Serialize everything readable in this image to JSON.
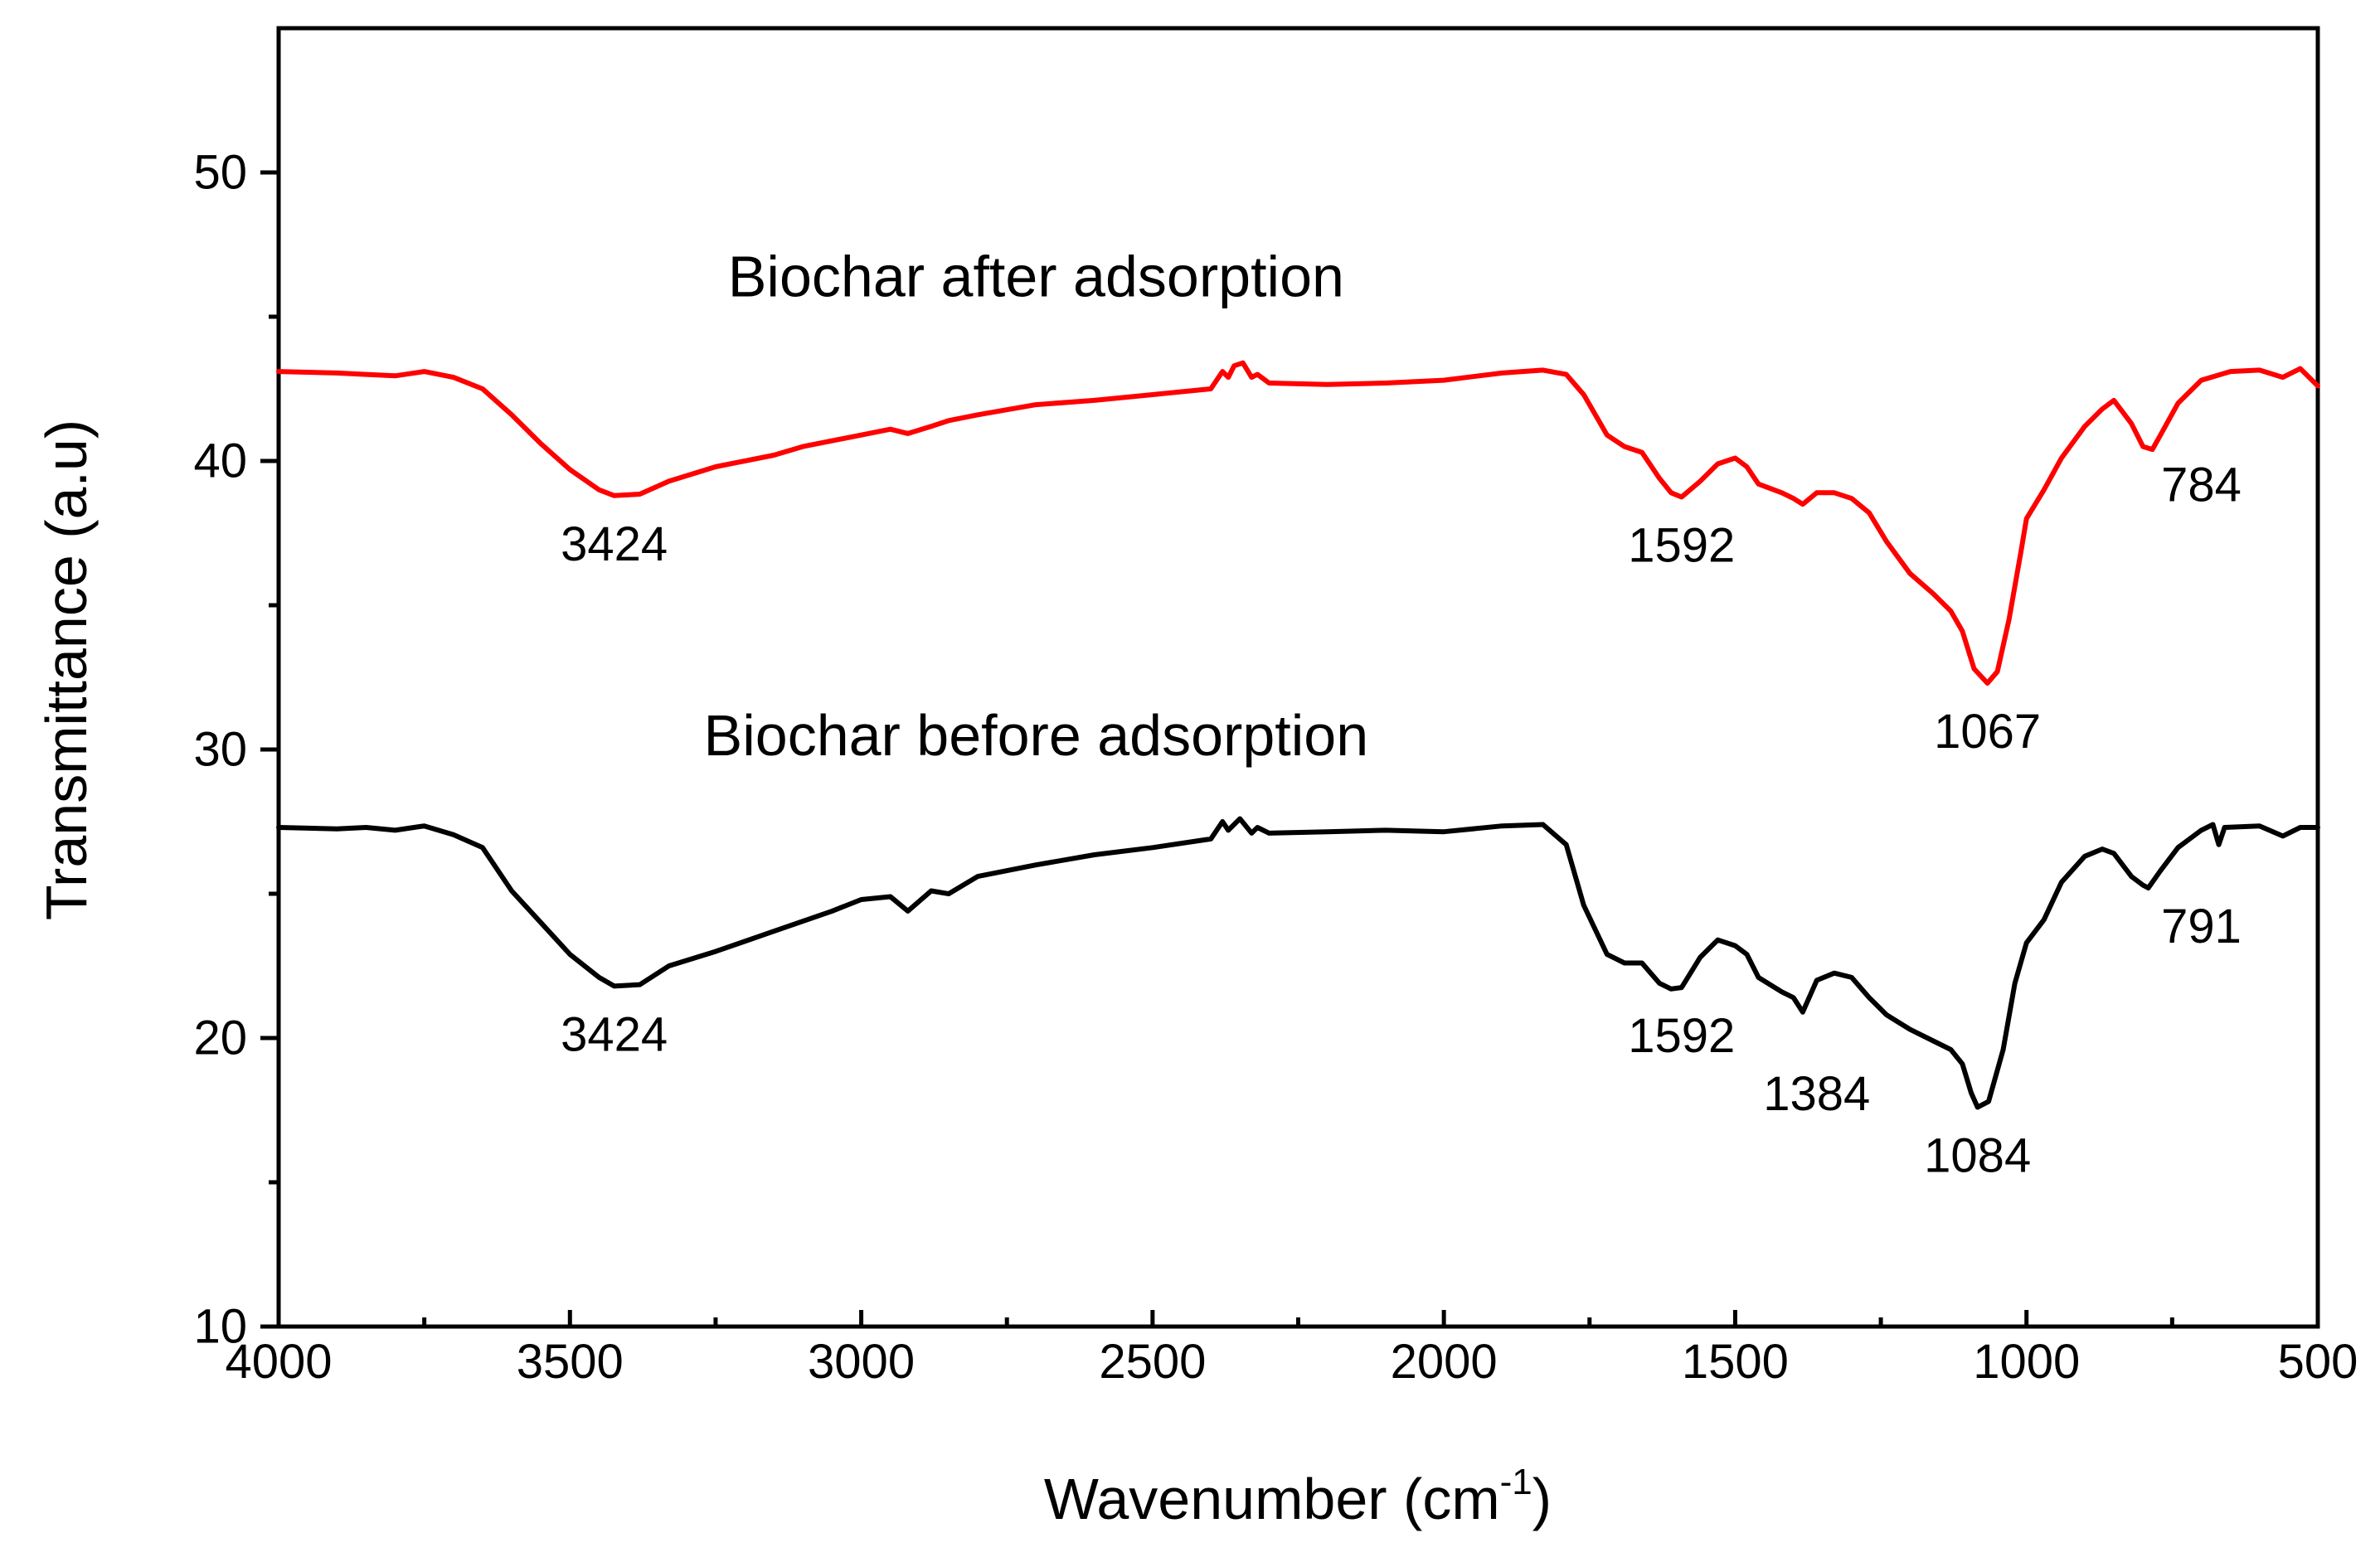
{
  "chart_data": {
    "type": "line",
    "title": "",
    "xlabel": "Wavenumber (cm",
    "xlabel_sup": "-1",
    "xlabel_close": ")",
    "ylabel": "Transmittance (a.u)",
    "xlim": [
      4000,
      500
    ],
    "ylim": [
      10,
      55
    ],
    "x_ticks": [
      4000,
      3500,
      3000,
      2500,
      2000,
      1500,
      1000,
      500
    ],
    "x_minor_ticks": [
      3750,
      3250,
      2750,
      2250,
      1750,
      1250,
      750
    ],
    "y_ticks": [
      10,
      20,
      30,
      40,
      50
    ],
    "y_minor_ticks": [
      15,
      25,
      35,
      45
    ],
    "grid": false,
    "series": [
      {
        "name": "Biochar after adsorption",
        "color": "#ff0000",
        "label": "Biochar after adsorption",
        "label_anchor": [
          2700,
          45.7
        ],
        "points": [
          [
            4000,
            43.1
          ],
          [
            3900,
            43.05
          ],
          [
            3850,
            43.0
          ],
          [
            3800,
            42.95
          ],
          [
            3750,
            43.1
          ],
          [
            3700,
            42.9
          ],
          [
            3650,
            42.5
          ],
          [
            3600,
            41.6
          ],
          [
            3550,
            40.6
          ],
          [
            3500,
            39.7
          ],
          [
            3450,
            39.0
          ],
          [
            3424,
            38.8
          ],
          [
            3380,
            38.85
          ],
          [
            3330,
            39.3
          ],
          [
            3250,
            39.8
          ],
          [
            3150,
            40.2
          ],
          [
            3100,
            40.5
          ],
          [
            3000,
            40.9
          ],
          [
            2950,
            41.1
          ],
          [
            2920,
            40.95
          ],
          [
            2880,
            41.2
          ],
          [
            2850,
            41.4
          ],
          [
            2800,
            41.6
          ],
          [
            2700,
            41.95
          ],
          [
            2600,
            42.1
          ],
          [
            2500,
            42.3
          ],
          [
            2400,
            42.5
          ],
          [
            2380,
            43.1
          ],
          [
            2370,
            42.9
          ],
          [
            2360,
            43.3
          ],
          [
            2345,
            43.4
          ],
          [
            2330,
            42.9
          ],
          [
            2320,
            43.0
          ],
          [
            2300,
            42.7
          ],
          [
            2200,
            42.65
          ],
          [
            2100,
            42.7
          ],
          [
            2000,
            42.8
          ],
          [
            1900,
            43.05
          ],
          [
            1830,
            43.15
          ],
          [
            1790,
            43.0
          ],
          [
            1760,
            42.3
          ],
          [
            1720,
            40.9
          ],
          [
            1690,
            40.5
          ],
          [
            1660,
            40.3
          ],
          [
            1630,
            39.4
          ],
          [
            1610,
            38.9
          ],
          [
            1592,
            38.75
          ],
          [
            1560,
            39.3
          ],
          [
            1530,
            39.9
          ],
          [
            1500,
            40.1
          ],
          [
            1480,
            39.8
          ],
          [
            1460,
            39.2
          ],
          [
            1420,
            38.9
          ],
          [
            1400,
            38.7
          ],
          [
            1384,
            38.5
          ],
          [
            1360,
            38.9
          ],
          [
            1330,
            38.9
          ],
          [
            1300,
            38.7
          ],
          [
            1270,
            38.2
          ],
          [
            1240,
            37.2
          ],
          [
            1200,
            36.1
          ],
          [
            1160,
            35.4
          ],
          [
            1130,
            34.8
          ],
          [
            1110,
            34.1
          ],
          [
            1090,
            32.8
          ],
          [
            1067,
            32.3
          ],
          [
            1050,
            32.7
          ],
          [
            1030,
            34.5
          ],
          [
            1010,
            36.8
          ],
          [
            1000,
            38.0
          ],
          [
            970,
            39.0
          ],
          [
            940,
            40.1
          ],
          [
            900,
            41.2
          ],
          [
            870,
            41.8
          ],
          [
            850,
            42.1
          ],
          [
            820,
            41.3
          ],
          [
            800,
            40.5
          ],
          [
            784,
            40.4
          ],
          [
            770,
            40.9
          ],
          [
            740,
            42.0
          ],
          [
            700,
            42.8
          ],
          [
            650,
            43.1
          ],
          [
            600,
            43.15
          ],
          [
            560,
            42.9
          ],
          [
            530,
            43.2
          ],
          [
            500,
            42.6
          ]
        ],
        "peaks": [
          {
            "label": "3424",
            "x": 3424,
            "y": 38.8
          },
          {
            "label": "1592",
            "x": 1592,
            "y": 38.75
          },
          {
            "label": "1067",
            "x": 1067,
            "y": 32.3
          },
          {
            "label": "784",
            "x": 784,
            "y": 40.4
          }
        ]
      },
      {
        "name": "Biochar before adsorption",
        "color": "#000000",
        "label": "Biochar before adsorption",
        "label_anchor": [
          2700,
          29.8
        ],
        "points": [
          [
            4000,
            27.3
          ],
          [
            3900,
            27.25
          ],
          [
            3850,
            27.3
          ],
          [
            3800,
            27.2
          ],
          [
            3750,
            27.35
          ],
          [
            3700,
            27.05
          ],
          [
            3650,
            26.6
          ],
          [
            3600,
            25.1
          ],
          [
            3550,
            24.0
          ],
          [
            3500,
            22.9
          ],
          [
            3450,
            22.1
          ],
          [
            3424,
            21.8
          ],
          [
            3380,
            21.85
          ],
          [
            3330,
            22.5
          ],
          [
            3250,
            23.0
          ],
          [
            3150,
            23.7
          ],
          [
            3050,
            24.4
          ],
          [
            3000,
            24.8
          ],
          [
            2950,
            24.9
          ],
          [
            2920,
            24.4
          ],
          [
            2880,
            25.1
          ],
          [
            2850,
            25.0
          ],
          [
            2800,
            25.6
          ],
          [
            2700,
            26.0
          ],
          [
            2600,
            26.35
          ],
          [
            2500,
            26.6
          ],
          [
            2400,
            26.9
          ],
          [
            2380,
            27.5
          ],
          [
            2370,
            27.2
          ],
          [
            2350,
            27.6
          ],
          [
            2330,
            27.1
          ],
          [
            2320,
            27.3
          ],
          [
            2300,
            27.1
          ],
          [
            2200,
            27.15
          ],
          [
            2100,
            27.2
          ],
          [
            2000,
            27.15
          ],
          [
            1900,
            27.35
          ],
          [
            1830,
            27.4
          ],
          [
            1790,
            26.7
          ],
          [
            1760,
            24.6
          ],
          [
            1720,
            22.9
          ],
          [
            1690,
            22.6
          ],
          [
            1660,
            22.6
          ],
          [
            1630,
            21.9
          ],
          [
            1610,
            21.7
          ],
          [
            1592,
            21.75
          ],
          [
            1560,
            22.8
          ],
          [
            1530,
            23.4
          ],
          [
            1500,
            23.2
          ],
          [
            1480,
            22.9
          ],
          [
            1460,
            22.1
          ],
          [
            1420,
            21.6
          ],
          [
            1400,
            21.4
          ],
          [
            1384,
            20.9
          ],
          [
            1360,
            22.0
          ],
          [
            1330,
            22.25
          ],
          [
            1300,
            22.1
          ],
          [
            1270,
            21.4
          ],
          [
            1240,
            20.8
          ],
          [
            1200,
            20.3
          ],
          [
            1160,
            19.9
          ],
          [
            1130,
            19.6
          ],
          [
            1110,
            19.1
          ],
          [
            1095,
            18.1
          ],
          [
            1084,
            17.6
          ],
          [
            1065,
            17.8
          ],
          [
            1040,
            19.6
          ],
          [
            1020,
            21.9
          ],
          [
            1000,
            23.3
          ],
          [
            970,
            24.1
          ],
          [
            940,
            25.4
          ],
          [
            900,
            26.3
          ],
          [
            870,
            26.55
          ],
          [
            850,
            26.4
          ],
          [
            820,
            25.6
          ],
          [
            800,
            25.3
          ],
          [
            791,
            25.2
          ],
          [
            770,
            25.8
          ],
          [
            740,
            26.6
          ],
          [
            700,
            27.2
          ],
          [
            680,
            27.4
          ],
          [
            670,
            26.7
          ],
          [
            660,
            27.3
          ],
          [
            600,
            27.35
          ],
          [
            560,
            27.0
          ],
          [
            530,
            27.3
          ],
          [
            500,
            27.3
          ]
        ],
        "peaks": [
          {
            "label": "3424",
            "x": 3424,
            "y": 21.8
          },
          {
            "label": "1592",
            "x": 1592,
            "y": 21.75
          },
          {
            "label": "1384",
            "x": 1384,
            "y": 20.9
          },
          {
            "label": "1084",
            "x": 1084,
            "y": 17.6
          },
          {
            "label": "791",
            "x": 791,
            "y": 25.2
          }
        ]
      }
    ]
  }
}
